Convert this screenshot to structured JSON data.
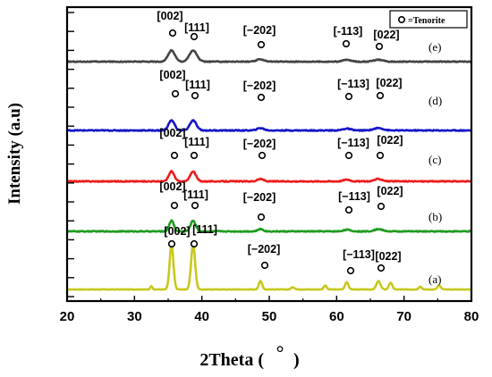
{
  "chart_data": {
    "type": "line",
    "xlabel": "2Theta (",
    "xlabel_degree_glyph": "°",
    "xlabel_close": ")",
    "ylabel": "Intensity (a.u)",
    "xlim": [
      20,
      80
    ],
    "xticks": [
      "20",
      "30",
      "40",
      "50",
      "60",
      "70",
      "80"
    ],
    "legend": {
      "position": "top-right",
      "label": "=Tenorite",
      "marker": "open-circle"
    },
    "peak_positions": [
      35.5,
      38.7,
      48.7,
      61.5,
      66.2
    ],
    "series": [
      {
        "name": "(a)",
        "color": "#c8c81e",
        "noise": 0.4,
        "peaks": [
          [
            32.5,
            6,
            0.15
          ],
          [
            35.5,
            80,
            0.28
          ],
          [
            38.7,
            80,
            0.3
          ],
          [
            48.7,
            15,
            0.25
          ],
          [
            53.5,
            4,
            0.25
          ],
          [
            58.3,
            7,
            0.22
          ],
          [
            61.5,
            13,
            0.25
          ],
          [
            66.2,
            15,
            0.3
          ],
          [
            68.0,
            12,
            0.25
          ],
          [
            72.4,
            5,
            0.22
          ],
          [
            75.2,
            7,
            0.25
          ]
        ],
        "peak_labels": [
          "[002]",
          "[111]",
          "[−202]",
          "[−113]",
          "[022]"
        ]
      },
      {
        "name": "(b)",
        "color": "#1f9c1f",
        "noise": 0.8,
        "peaks": [
          [
            35.5,
            19,
            0.35
          ],
          [
            38.7,
            19,
            0.38
          ],
          [
            48.7,
            4,
            0.4
          ],
          [
            61.5,
            3,
            0.5
          ],
          [
            66.2,
            4,
            0.6
          ]
        ],
        "peak_labels": [
          "[002]",
          "[111]",
          "[−202]",
          "[−113]",
          "[022]"
        ]
      },
      {
        "name": "(c)",
        "color": "#ee1c1c",
        "noise": 0.8,
        "peaks": [
          [
            35.5,
            17,
            0.4
          ],
          [
            38.7,
            17,
            0.42
          ],
          [
            48.7,
            4,
            0.45
          ],
          [
            61.5,
            3,
            0.5
          ],
          [
            66.2,
            4,
            0.6
          ]
        ],
        "peak_labels": [
          "[002]",
          "[111]",
          "[−202]",
          "[−113]",
          "[022]"
        ]
      },
      {
        "name": "(d)",
        "color": "#1616c8",
        "noise": 0.8,
        "peaks": [
          [
            35.5,
            17,
            0.45
          ],
          [
            38.7,
            17,
            0.48
          ],
          [
            48.7,
            4,
            0.5
          ],
          [
            61.5,
            3,
            0.6
          ],
          [
            66.2,
            4,
            0.7
          ]
        ],
        "peak_labels": [
          "[002]",
          "[111]",
          "[−202]",
          "[−113]",
          "[022]"
        ]
      },
      {
        "name": "(e)",
        "color": "#444444",
        "noise": 0.7,
        "peaks": [
          [
            35.5,
            19,
            0.5
          ],
          [
            38.7,
            19,
            0.55
          ],
          [
            48.7,
            4,
            0.55
          ],
          [
            61.5,
            3,
            0.6
          ],
          [
            66.2,
            3,
            0.7
          ]
        ],
        "peak_labels": [
          "[002]",
          "[111]",
          "[−202]",
          "[-113]",
          "[022]"
        ]
      }
    ]
  }
}
